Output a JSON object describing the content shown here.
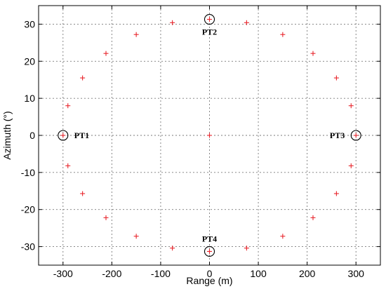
{
  "chart_data": {
    "type": "scatter",
    "xlabel": "Range (m)",
    "ylabel": "Azimuth (°)",
    "xlim": [
      -350,
      350
    ],
    "ylim": [
      -35,
      35
    ],
    "xticks": [
      -300,
      -200,
      -100,
      0,
      100,
      200,
      300
    ],
    "yticks": [
      -30,
      -20,
      -10,
      0,
      10,
      20,
      30
    ],
    "xtick_labels": [
      "-300",
      "-200",
      "-100",
      "0",
      "100",
      "200",
      "300"
    ],
    "ytick_labels": [
      "-30",
      "-20",
      "-10",
      "0",
      "10",
      "20",
      "30"
    ],
    "grid": true,
    "marker": "plus",
    "marker_color": "#e8242b",
    "points": [
      {
        "x": 0,
        "y": 0
      },
      {
        "x": 0,
        "y": 31.3
      },
      {
        "x": 76,
        "y": 30.4
      },
      {
        "x": 150,
        "y": 27.2
      },
      {
        "x": 212,
        "y": 22.1
      },
      {
        "x": 260,
        "y": 15.5
      },
      {
        "x": 290,
        "y": 8.0
      },
      {
        "x": 300,
        "y": 0
      },
      {
        "x": 290,
        "y": -8.2
      },
      {
        "x": 260,
        "y": -15.7
      },
      {
        "x": 212,
        "y": -22.2
      },
      {
        "x": 150,
        "y": -27.2
      },
      {
        "x": 76,
        "y": -30.4
      },
      {
        "x": 0,
        "y": -31.3
      },
      {
        "x": -76,
        "y": -30.4
      },
      {
        "x": -150,
        "y": -27.2
      },
      {
        "x": -212,
        "y": -22.2
      },
      {
        "x": -260,
        "y": -15.7
      },
      {
        "x": -290,
        "y": -8.2
      },
      {
        "x": -300,
        "y": 0
      },
      {
        "x": -290,
        "y": 8.0
      },
      {
        "x": -260,
        "y": 15.5
      },
      {
        "x": -212,
        "y": 22.1
      },
      {
        "x": -150,
        "y": 27.2
      },
      {
        "x": -76,
        "y": 30.4
      }
    ],
    "annotations": [
      {
        "label": "PT1",
        "x": -300,
        "y": 0,
        "text_side": "right"
      },
      {
        "label": "PT2",
        "x": 0,
        "y": 31.3,
        "text_side": "below"
      },
      {
        "label": "PT3",
        "x": 300,
        "y": 0,
        "text_side": "left"
      },
      {
        "label": "PT4",
        "x": 0,
        "y": -31.3,
        "text_side": "above"
      }
    ]
  }
}
